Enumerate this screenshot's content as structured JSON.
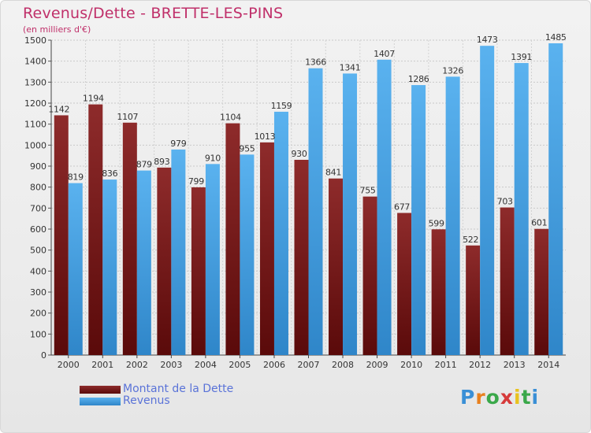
{
  "chart_data": {
    "type": "bar",
    "title": "Revenus/Dette - BRETTE-LES-PINS",
    "subtitle": "(en milliers d'€)",
    "categories": [
      "2000",
      "2001",
      "2002",
      "2003",
      "2004",
      "2005",
      "2006",
      "2007",
      "2008",
      "2009",
      "2010",
      "2011",
      "2012",
      "2013",
      "2014"
    ],
    "series": [
      {
        "name": "Montant de la Dette",
        "color": "#7a1d1d",
        "values": [
          1142,
          1194,
          1107,
          893,
          799,
          1104,
          1013,
          930,
          841,
          755,
          677,
          599,
          522,
          703,
          601
        ]
      },
      {
        "name": "Revenus",
        "color": "#45a3e6",
        "values": [
          819,
          836,
          879,
          979,
          910,
          955,
          1159,
          1366,
          1341,
          1407,
          1286,
          1326,
          1473,
          1391,
          1485
        ]
      }
    ],
    "ylim": [
      0,
      1500
    ],
    "yticks": [
      0,
      100,
      200,
      300,
      400,
      500,
      600,
      700,
      800,
      900,
      1000,
      1100,
      1200,
      1300,
      1400,
      1500
    ],
    "grid": true,
    "legend_position": "bottom-left"
  },
  "logo": {
    "letters": [
      "P",
      "r",
      "o",
      "x",
      "i",
      "t",
      "i"
    ],
    "colors": [
      "#3a8fd6",
      "#e8801e",
      "#3aa84a",
      "#d63a3a",
      "#e8c21e",
      "#3aa84a",
      "#3a8fd6"
    ]
  }
}
